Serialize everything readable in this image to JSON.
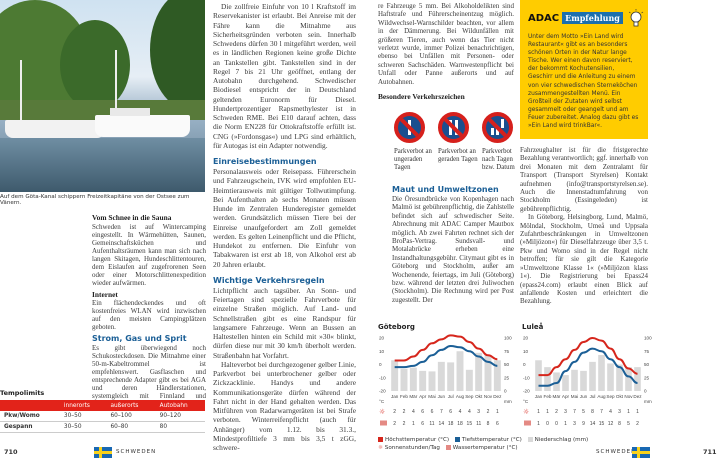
{
  "left_page": {
    "photo_caption": "Auf dem Göta-Kanal schippern Freizeitkapitäne von der Ostsee zum Vänern.",
    "sections": [
      {
        "heading": "Vom Schnee in die Sauna",
        "text": "Schweden ist auf Wintercamping eingestellt. In Wärmehütten, Saunen, Gemeinschaftsküchen und Aufenthaltsräumen kann man sich nach langen Skitagen, Hundeschlittentouren, dem Eislaufen auf zugefrorenen Seen oder einer Motorschlittenexpedition wieder aufwärmen."
      },
      {
        "heading": "Internet",
        "text": "Ein flächendeckendes und oft kostenfreies WLAN wird inzwischen auf den meisten Campingplätzen geboten."
      },
      {
        "heading": "Strom, Gas und Sprit",
        "text": "Es gibt überwiegend noch Schukosteckdosen. Die Mitnahme einer 50-m-Kabeltrommel ist empfehlenswert. Gasflaschen und entsprechende Adapter gibt es bei AGA und deren Händlerstationen, systemgleich mit Finnland und Norwegen."
      }
    ],
    "col2": {
      "intro": "Die zollfreie Einfuhr von 10 l Kraftstoff im Reservekanister ist erlaubt. Bei Anreise mit der Fähre kann die Mitnahme aus Sicherheitsgründen verboten sein. Innerhalb Schwedens dürfen 30 l mitgeführt werden, weil es in ländlichen Regionen keine große Dichte an Tankstellen gibt. Tankstellen sind in der Regel 7 bis 21 Uhr geöffnet, entlang der Autobahn durchgehend. Schwedischer Biodiesel entspricht der in Deutschland geltenden Euronorm für Diesel. Hundertprozentiger Rapsmethylester ist in Schweden RME. Bei E10 darauf achten, dass die Norm EN228 für Ottokraftstoffe erfüllt ist. CNG (»Fordonsgas«) und LPG sind erhältlich, für Autogas ist ein Adapter notwendig.",
      "h1": "Einreisebestimmungen",
      "p1": "Personalausweis oder Reisepass. Führerschein und Fahrzeugschein, IVK wird empfohlen EU-Heimtierausweis mit gültiger Tollwutimpfung. Bei Aufenthalten ab sechs Monaten müssen Hunde im Zentralen Hunderegister gemeldet werden. Grundsätzlich müssen Tiere bei der Einreise unaufgefordert am Zoll gemeldet werden. Es gelten Leinenpflicht und die Pflicht, Hundekot zu entfernen. Die Einfuhr von Tabakwaren ist erst ab 18, von Alkohol erst ab 20 Jahren erlaubt.",
      "h2": "Wichtige Verkehrsregeln",
      "p2": "Lichtpflicht auch tagsüber. An Sonn- und Feiertagen sind spezielle Fahrverbote für einzelne Straßen möglich. Auf Land- und Schnellstraßen gibt es eine Randspur für langsamere Fahrzeuge. Wenn an Bussen an Haltestellen hinten ein Schild mit »30« blinkt, dürfen diese nur mit 30 km/h überholt werden. Straßenbahn hat Vorfahrt.",
      "p3": "Halteverbot bei durchgezogener gelber Linie, Parkverbot bei unterbrochener gelber oder Zickzacklinie. Handys und andere Kommunikationsgeräte dürfen während der Fahrt nicht in der Hand gehalten werden. Das Mitführen von Radarwarngeräten ist bei Strafe verboten. Winterreifenpflicht (auch für Anhänger) vom 1.12. bis 31.3., Mindestprofiltiefe 3 mm bis 3,5 t zGG, schwere-"
    },
    "tempolimits": {
      "title": "Tempolimits",
      "headers": [
        "",
        "innerorts",
        "außerorts",
        "Autobahn"
      ],
      "rows": [
        [
          "Pkw/Womo",
          "30–50",
          "60–100",
          "90–120"
        ],
        [
          "Gespann",
          "30–50",
          "60–80",
          "80"
        ]
      ]
    },
    "page_number": "710",
    "section_label": "SCHWEDEN"
  },
  "right_page": {
    "col1_intro": "re Fahrzeuge 5 mm. Bei Alkoholdelikten sind Haftstrafe und Führerscheinentzug möglich. Wildwechsel-Warnschilder beachten, vor allem in der Dämmerung. Bei Wildunfällen mit größeren Tieren, auch wenn das Tier nicht verletzt wurde, immer Polizei benachrichtigen, ebenso bei Unfällen mit Personen- oder schweren Sachschäden. Warnwestenpflicht bei Unfall oder Panne außerorts und auf Autobahnen.",
    "signs_heading": "Besondere Verkehrszeichen",
    "signs": [
      {
        "label": "Parkverbot an ungeraden Tagen"
      },
      {
        "label": "Parkverbot an geraden Tagen"
      },
      {
        "label": "Parkverbot nach Tagen bzw. Datum"
      }
    ],
    "maut_heading": "Maut und Umweltzonen",
    "maut_text": "Die Öresundbrücke von Kopenhagen nach Malmö ist gebührenpflichtig, die Zahlstelle befindet sich auf schwedischer Seite. Abrechnung mit ADAC Camper Mautbox möglich. Ab zwei Fahrten rechnet sich der BroPas-Vertrag. Sundsvall- und Motalabrücke erheben eine Instandhaltungsgebühr. Citymaut gibt es in Göteborg und Stockholm, außer am Wochenende, feiertags, im Juli (Göteborg) bzw. während der letzten drei Juliwochen (Stockholm). Die Rechnung wird per Post zugestellt. Der",
    "adac": {
      "brand": "ADAC",
      "badge": "Empfehlung",
      "text": "Unter dem Motto »Ein Land wird Restaurant« gibt es an besonders schönen Orten in der Natur lange Tische. Wer einen davon reserviert, der bekommt Kochutensilien, Geschirr und die Anleitung zu einem von vier schwedischen Sterneköchen zusammengestellten Menü. Ein Großteil der Zutaten wird selbst gesammelt oder geangelt und am Feuer zubereitet. Analog dazu gibt es »Ein Land wird trinkBar«.",
      "colors": {
        "box": "#ffcc00",
        "badge": "#1b6fae"
      }
    },
    "col2_p1": "Fahrzeughalter ist für die fristgerechte Bezahlung verantwortlich; ggf. innerhalb von drei Monaten mit dem Zentralamt für Transport (Transport Styrelsen) Kontakt aufnehmen (info@transportstyrelsen.se). Auch die Innenstadtumfahrung von Stockholm (Essingeleden) ist gebührenpflichtig.",
    "col2_p2": "In Göteborg, Helsingborg, Lund, Malmö, Mölndal, Stockholm, Umeå und Uppsala Zufahrtbeschränkungen in Umweltzonen (»Miljözon«) für Dieselfahrzeuge über 3,5 t. Pkw und Womo sind in der Regel nicht betroffen; für sie gilt die Kategorie »Umweltzone Klasse 1« (»Miljözon klass 1«). Die Registrierung bei Epass24 (epass24.com) erlaubt einen Blick auf anfallende Kosten und erleichtert die Bezahlung.",
    "legend": {
      "high": "Höchsttemperatur (°C)",
      "low": "Tiefsttemperatur (°C)",
      "precip": "Niederschlag (mm)",
      "sun": "Sonnenstunden/Tag",
      "water": "Wassertemperatur (°C)"
    },
    "page_number": "711",
    "section_label": "SCHWEDEN"
  },
  "chart_data": [
    {
      "type": "line",
      "title": "Göteborg",
      "x": [
        "Jan",
        "Feb",
        "Mär",
        "Apr",
        "Mai",
        "Jun",
        "Jul",
        "Aug",
        "Sep",
        "Okt",
        "Nov",
        "Dez"
      ],
      "ylim_left": [
        -20,
        20
      ],
      "yticks_left": [
        "20",
        "10",
        "0",
        "-10",
        "-20"
      ],
      "ylabel_left": "°C",
      "ylim_right": [
        0,
        100
      ],
      "yticks_right": [
        "100",
        "75",
        "50",
        "25",
        "0"
      ],
      "ylabel_right": "mm",
      "series": [
        {
          "name": "Höchsttemperatur (°C)",
          "type": "line",
          "color": "#d6261c",
          "values": [
            3,
            3,
            6,
            11,
            16,
            19,
            22,
            21,
            17,
            12,
            7,
            4
          ]
        },
        {
          "name": "Tiefsttemperatur (°C)",
          "type": "line",
          "color": "#1b5f96",
          "values": [
            -2,
            -2,
            -1,
            2,
            7,
            11,
            14,
            13,
            10,
            6,
            2,
            -1
          ]
        },
        {
          "name": "Niederschlag (mm)",
          "type": "bar",
          "color": "#d9d9d9",
          "values": [
            58,
            42,
            44,
            38,
            37,
            55,
            54,
            75,
            40,
            72,
            68,
            58
          ]
        }
      ],
      "sun": [
        "2",
        "2",
        "4",
        "6",
        "6",
        "7",
        "6",
        "4",
        "4",
        "3",
        "2",
        "1"
      ],
      "water": [
        "2",
        "2",
        "1",
        "6",
        "11",
        "14",
        "18",
        "18",
        "15",
        "11",
        "8",
        "6"
      ]
    },
    {
      "type": "line",
      "title": "Luleå",
      "x": [
        "Jan",
        "Feb",
        "Mär",
        "Apr",
        "Mai",
        "Jun",
        "Jul",
        "Aug",
        "Sep",
        "Okt",
        "Nov",
        "Dez"
      ],
      "ylim_left": [
        -20,
        20
      ],
      "yticks_left": [
        "20",
        "10",
        "0",
        "-10",
        "-20"
      ],
      "ylabel_left": "°C",
      "ylim_right": [
        0,
        100
      ],
      "yticks_right": [
        "100",
        "75",
        "50",
        "25",
        "0"
      ],
      "ylabel_right": "mm",
      "series": [
        {
          "name": "Höchsttemperatur (°C)",
          "type": "line",
          "color": "#d6261c",
          "values": [
            -8,
            -8,
            -2,
            4,
            11,
            17,
            20,
            18,
            12,
            4,
            -3,
            -7
          ]
        },
        {
          "name": "Tiefsttemperatur (°C)",
          "type": "line",
          "color": "#1b5f96",
          "values": [
            -16,
            -16,
            -14,
            -5,
            2,
            9,
            12,
            10,
            4,
            -2,
            -9,
            -14
          ]
        },
        {
          "name": "Niederschlag (mm)",
          "type": "bar",
          "color": "#d9d9d9",
          "values": [
            58,
            45,
            35,
            30,
            40,
            38,
            55,
            68,
            52,
            50,
            45,
            45
          ]
        }
      ],
      "sun": [
        "1",
        "1",
        "2",
        "3",
        "7",
        "5",
        "8",
        "7",
        "4",
        "3",
        "1",
        "1"
      ],
      "water": [
        "1",
        "0",
        "0",
        "1",
        "3",
        "9",
        "14",
        "15",
        "12",
        "8",
        "5",
        "2"
      ]
    }
  ]
}
